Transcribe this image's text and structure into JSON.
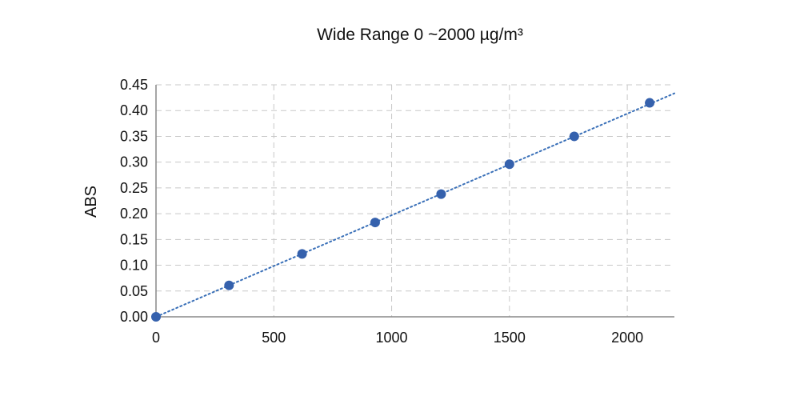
{
  "chart_data": {
    "type": "scatter",
    "title": "Wide Range 0 ~2000 µg/m³",
    "xlabel": "",
    "ylabel": "ABS",
    "xlim": [
      0,
      2200
    ],
    "ylim": [
      0,
      0.45
    ],
    "x_ticks": [
      "0",
      "500",
      "1000",
      "1500",
      "2000"
    ],
    "y_ticks": [
      "0.00",
      "0.05",
      "0.10",
      "0.15",
      "0.20",
      "0.25",
      "0.30",
      "0.35",
      "0.40",
      "0.45"
    ],
    "grid": true,
    "legend": "none",
    "series": [
      {
        "x": [
          0,
          310,
          620,
          930,
          1210,
          1500,
          1775,
          2095
        ],
        "y": [
          0.0,
          0.061,
          0.122,
          0.183,
          0.238,
          0.296,
          0.35,
          0.415
        ],
        "color": "#3561ad"
      }
    ],
    "trendline": {
      "style": "dotted",
      "color": "#3a70b8",
      "slope": 0.000197,
      "intercept": 0.0
    },
    "colors": {
      "marker": "#3561ad",
      "trendline": "#3a70b8",
      "grid": "#c8c8c8",
      "axis": "#888888"
    }
  }
}
